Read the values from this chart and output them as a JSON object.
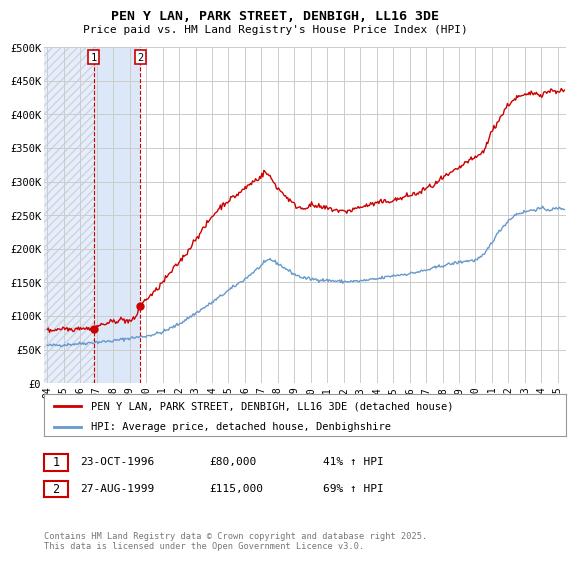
{
  "title": "PEN Y LAN, PARK STREET, DENBIGH, LL16 3DE",
  "subtitle": "Price paid vs. HM Land Registry's House Price Index (HPI)",
  "bg_color": "#ffffff",
  "plot_bg_color": "#ffffff",
  "grid_color": "#cccccc",
  "hatch_color": "#c8d4e8",
  "hatch_bg_color": "#e8eef8",
  "between_fill_color": "#dce8f8",
  "sale1_date": "23-OCT-1996",
  "sale1_price": 80000,
  "sale1_pct": "41% ↑ HPI",
  "sale2_date": "27-AUG-1999",
  "sale2_price": 115000,
  "sale2_pct": "69% ↑ HPI",
  "sale1_x": 1996.81,
  "sale2_x": 1999.65,
  "ylim": [
    0,
    500000
  ],
  "xlim_left": 1993.8,
  "xlim_right": 2025.5,
  "red_line_color": "#cc0000",
  "blue_line_color": "#6699cc",
  "vline_color": "#cc0000",
  "legend_label1": "PEN Y LAN, PARK STREET, DENBIGH, LL16 3DE (detached house)",
  "legend_label2": "HPI: Average price, detached house, Denbighshire",
  "footer": "Contains HM Land Registry data © Crown copyright and database right 2025.\nThis data is licensed under the Open Government Licence v3.0.",
  "yticks": [
    0,
    50000,
    100000,
    150000,
    200000,
    250000,
    300000,
    350000,
    400000,
    450000,
    500000
  ],
  "ytick_labels": [
    "£0",
    "£50K",
    "£100K",
    "£150K",
    "£200K",
    "£250K",
    "£300K",
    "£350K",
    "£400K",
    "£450K",
    "£500K"
  ],
  "xtick_years": [
    1994,
    1995,
    1996,
    1997,
    1998,
    1999,
    2000,
    2001,
    2002,
    2003,
    2004,
    2005,
    2006,
    2007,
    2008,
    2009,
    2010,
    2011,
    2012,
    2013,
    2014,
    2015,
    2016,
    2017,
    2018,
    2019,
    2020,
    2021,
    2022,
    2023,
    2024,
    2025
  ]
}
